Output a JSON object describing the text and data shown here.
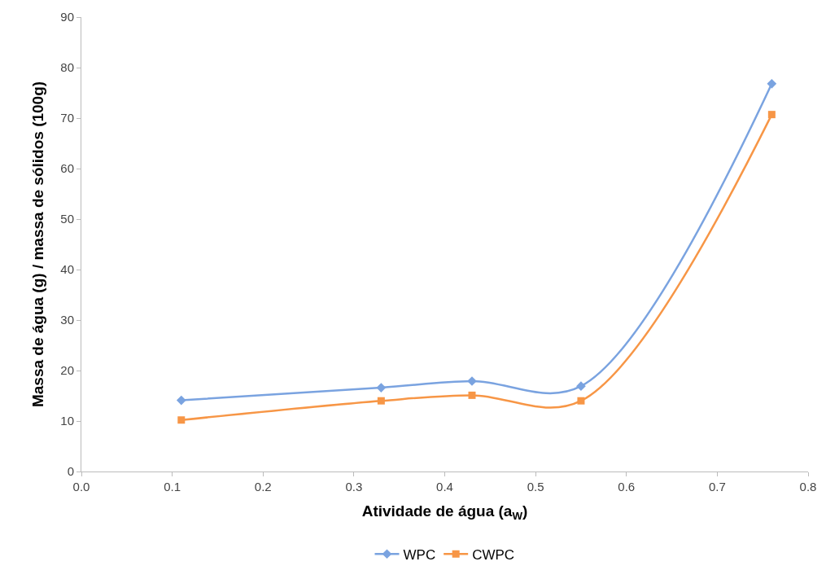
{
  "chart_data": {
    "type": "line",
    "xlabel": "Atividade de água (a$_{W}$)",
    "ylabel": "Massa de água (g) / massa de sólidos (100g)",
    "x": [
      0.11,
      0.33,
      0.43,
      0.55,
      0.76
    ],
    "series": [
      {
        "name": "WPC",
        "color": "#7aa3e0",
        "marker": "diamond",
        "values": [
          14.1,
          16.6,
          17.9,
          16.9,
          76.8
        ]
      },
      {
        "name": "CWPC",
        "color": "#f79646",
        "marker": "square",
        "values": [
          10.2,
          14.0,
          15.1,
          14.0,
          70.7
        ]
      }
    ],
    "xlim": [
      0,
      0.8
    ],
    "xticks": [
      {
        "value": 0,
        "label": "0.0"
      },
      0.1,
      0.2,
      0.3,
      0.4,
      0.5,
      0.6,
      0.7,
      0.8
    ],
    "ylim": [
      0,
      90
    ],
    "yticks": [
      0,
      10,
      20,
      30,
      40,
      50,
      60,
      70,
      80,
      90
    ],
    "legend": "bottom",
    "line_style": "solid"
  }
}
